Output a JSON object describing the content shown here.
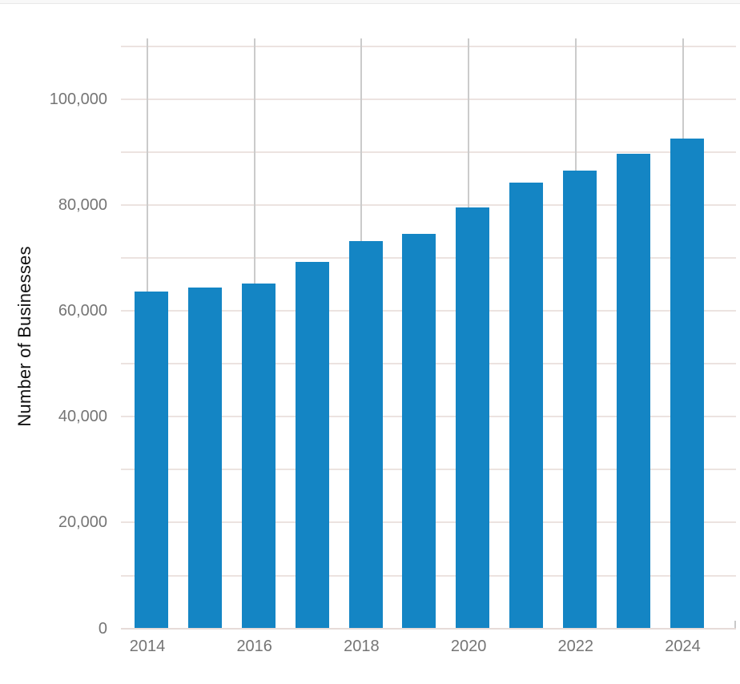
{
  "chart_data": {
    "type": "bar",
    "title": "",
    "xlabel": "",
    "ylabel": "Number of Businesses",
    "categories": [
      "2014",
      "2015",
      "2016",
      "2017",
      "2018",
      "2019",
      "2020",
      "2021",
      "2022",
      "2023",
      "2024"
    ],
    "values": [
      63600,
      64400,
      65200,
      69200,
      73200,
      74500,
      79500,
      84200,
      86500,
      89600,
      92500
    ],
    "series_name": "Number of Businesses",
    "ylim": [
      0,
      111500
    ],
    "grid": {
      "horizontal_step": 10000,
      "horizontal_max": 110000,
      "vertical_at": [
        "2014",
        "2016",
        "2018",
        "2020",
        "2022",
        "2024"
      ],
      "visible": true
    },
    "x_ticks": [
      {
        "label": "2014",
        "year": 2014
      },
      {
        "label": "2016",
        "year": 2016
      },
      {
        "label": "2018",
        "year": 2018
      },
      {
        "label": "2020",
        "year": 2020
      },
      {
        "label": "2022",
        "year": 2022
      },
      {
        "label": "2024",
        "year": 2024
      }
    ],
    "y_ticks": [
      {
        "value": 0,
        "label": "0"
      },
      {
        "value": 20000,
        "label": "20,000"
      },
      {
        "value": 40000,
        "label": "40,000"
      },
      {
        "value": 60000,
        "label": "60,000"
      },
      {
        "value": 80000,
        "label": "80,000"
      },
      {
        "value": 100000,
        "label": "100,000"
      }
    ],
    "legend": {
      "visible": false
    },
    "colors": {
      "bar": "#1485c4",
      "horizontal_gridline": "#ece3e0",
      "vertical_gridline": "#cbcbcb",
      "baseline": "#e6dbd8",
      "edge_tick": "#c9c9c9",
      "tick_label": "#757575",
      "axis_title": "#111111",
      "top_strip": "#f8f8f8"
    }
  }
}
